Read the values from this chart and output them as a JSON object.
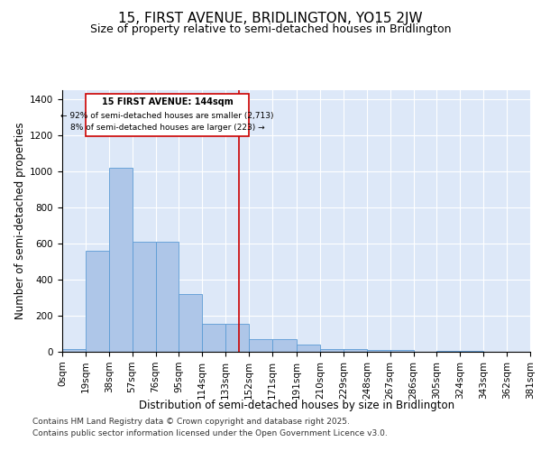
{
  "title": "15, FIRST AVENUE, BRIDLINGTON, YO15 2JW",
  "subtitle": "Size of property relative to semi-detached houses in Bridlington",
  "xlabel": "Distribution of semi-detached houses by size in Bridlington",
  "ylabel": "Number of semi-detached properties",
  "footer_line1": "Contains HM Land Registry data © Crown copyright and database right 2025.",
  "footer_line2": "Contains public sector information licensed under the Open Government Licence v3.0.",
  "annotation_title": "15 FIRST AVENUE: 144sqm",
  "annotation_line2": "← 92% of semi-detached houses are smaller (2,713)",
  "annotation_line3": "8% of semi-detached houses are larger (223) →",
  "property_size": 144,
  "bin_edges": [
    0,
    19,
    38,
    57,
    76,
    95,
    114,
    133,
    152,
    171,
    191,
    210,
    229,
    248,
    267,
    286,
    305,
    324,
    343,
    362,
    381
  ],
  "bar_heights": [
    15,
    560,
    1020,
    610,
    610,
    320,
    155,
    155,
    70,
    70,
    40,
    15,
    15,
    8,
    8,
    0,
    5,
    3,
    2,
    1
  ],
  "bar_color": "#aec6e8",
  "bar_edge_color": "#5b9bd5",
  "vline_color": "#cc0000",
  "vline_x": 144,
  "box_edge_color": "#cc0000",
  "background_color": "#dde8f8",
  "ylim": [
    0,
    1450
  ],
  "yticks": [
    0,
    200,
    400,
    600,
    800,
    1000,
    1200,
    1400
  ],
  "grid_color": "#ffffff",
  "title_fontsize": 11,
  "subtitle_fontsize": 9,
  "axis_label_fontsize": 8.5,
  "tick_fontsize": 7.5,
  "footer_fontsize": 6.5,
  "ann_fontsize_title": 7,
  "ann_fontsize_text": 6.5
}
